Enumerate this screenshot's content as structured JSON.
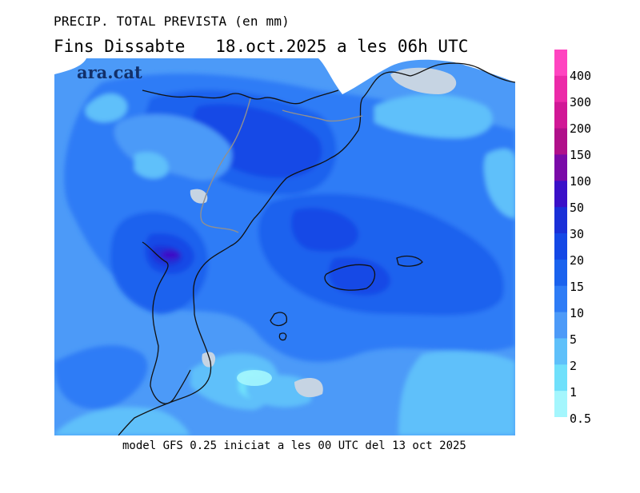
{
  "header": {
    "title": "PRECIP. TOTAL PREVISTA (en mm)",
    "valid_time": "Fins Dissabte   18.oct.2025 a les 06h UTC"
  },
  "footer": {
    "model_info": "model GFS 0.25 iniciat a les 00 UTC del 13 oct 2025"
  },
  "map": {
    "watermark": "ara.cat"
  },
  "legend": {
    "items": [
      {
        "label": "400",
        "color": "#ff44c0"
      },
      {
        "label": "300",
        "color": "#ec2aa8"
      },
      {
        "label": "200",
        "color": "#d11896"
      },
      {
        "label": "150",
        "color": "#b0108a"
      },
      {
        "label": "100",
        "color": "#7a0aa8"
      },
      {
        "label": "50",
        "color": "#3a10c8"
      },
      {
        "label": "30",
        "color": "#1a30d8"
      },
      {
        "label": "20",
        "color": "#1448e6"
      },
      {
        "label": "15",
        "color": "#1a62ee"
      },
      {
        "label": "10",
        "color": "#2e7cf6"
      },
      {
        "label": "5",
        "color": "#4c9af8"
      },
      {
        "label": "2",
        "color": "#5ec0fa"
      },
      {
        "label": "1",
        "color": "#6fe0fb"
      },
      {
        "label": "0.5",
        "color": "#a4f6fd"
      }
    ]
  }
}
